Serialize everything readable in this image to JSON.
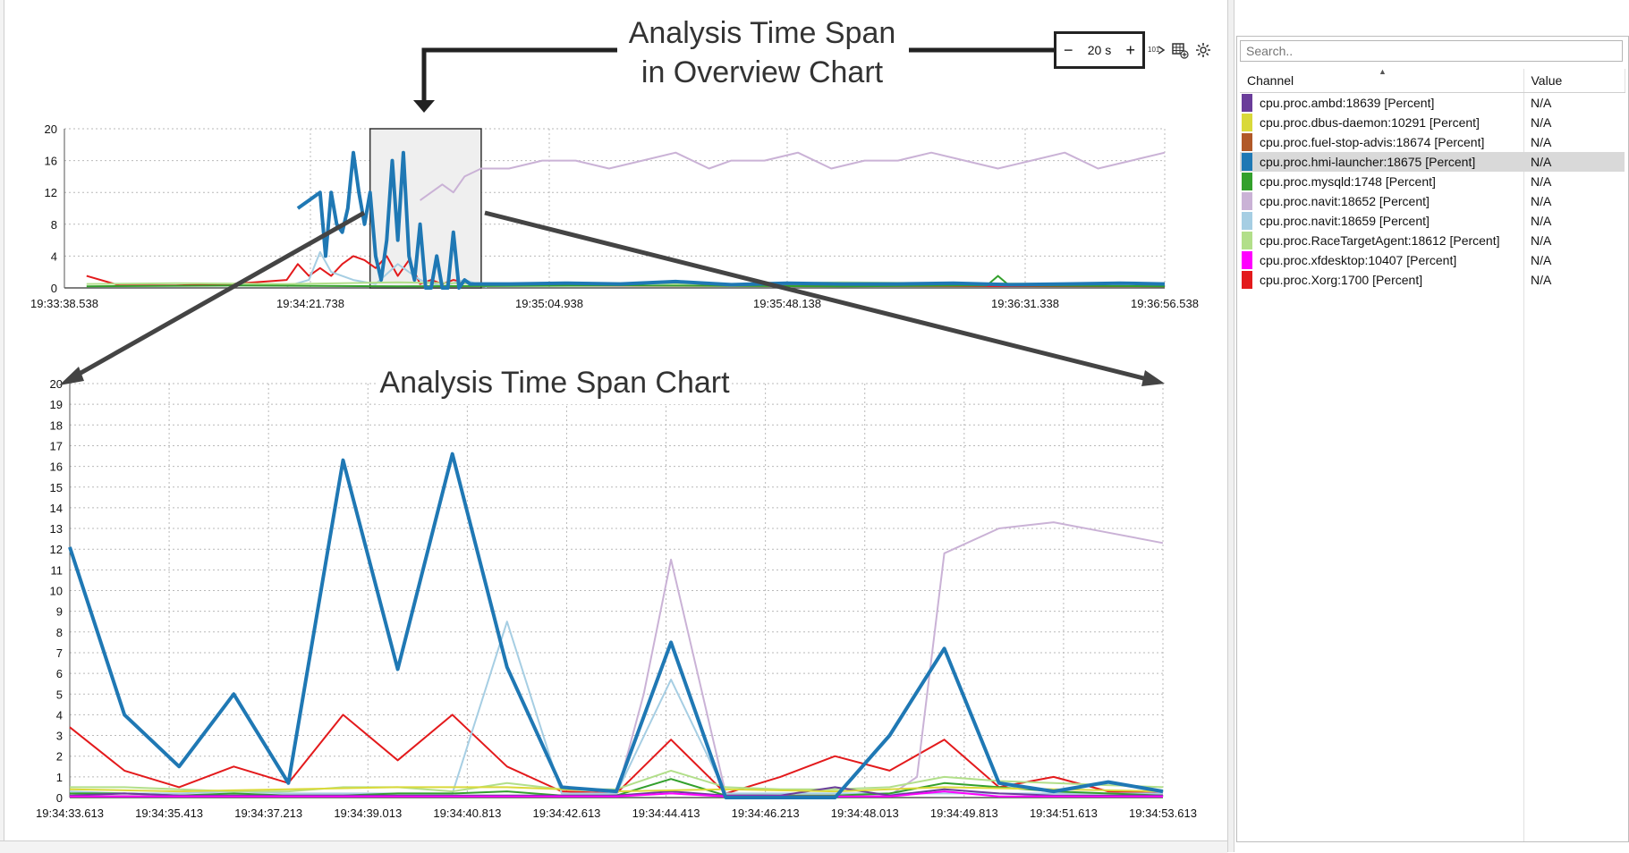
{
  "zoom": {
    "minus": "−",
    "value": "20 s",
    "plus": "+"
  },
  "toolbar_icons": [
    "export-icon",
    "table-add-icon",
    "settings-icon"
  ],
  "search": {
    "placeholder": "Search.."
  },
  "table": {
    "headers": [
      "Channel",
      "Value"
    ],
    "rows": [
      {
        "channel": "cpu.proc.ambd:18639 [Percent]",
        "value": "N/A",
        "color": "#6a3d9a"
      },
      {
        "channel": "cpu.proc.dbus-daemon:10291 [Percent]",
        "value": "N/A",
        "color": "#d9d93a"
      },
      {
        "channel": "cpu.proc.fuel-stop-advis:18674 [Percent]",
        "value": "N/A",
        "color": "#b15928"
      },
      {
        "channel": "cpu.proc.hmi-launcher:18675 [Percent]",
        "value": "N/A",
        "color": "#1f78b4",
        "selected": true
      },
      {
        "channel": "cpu.proc.mysqld:1748 [Percent]",
        "value": "N/A",
        "color": "#33a02c"
      },
      {
        "channel": "cpu.proc.navit:18652 [Percent]",
        "value": "N/A",
        "color": "#cab2d6"
      },
      {
        "channel": "cpu.proc.navit:18659 [Percent]",
        "value": "N/A",
        "color": "#a6cee3"
      },
      {
        "channel": "cpu.proc.RaceTargetAgent:18612 [Percent]",
        "value": "N/A",
        "color": "#b2df8a"
      },
      {
        "channel": "cpu.proc.xfdesktop:10407 [Percent]",
        "value": "N/A",
        "color": "#ff00ff"
      },
      {
        "channel": "cpu.proc.Xorg:1700 [Percent]",
        "value": "N/A",
        "color": "#e31a1c"
      }
    ]
  },
  "callouts": {
    "overview_line1": "Analysis Time Span",
    "overview_line2": "in Overview Chart",
    "detail": "Analysis Time Span Chart"
  },
  "chart_data": [
    {
      "type": "line",
      "title": "",
      "ylim": [
        0,
        20
      ],
      "yticks": [
        0,
        4,
        8,
        12,
        16,
        20
      ],
      "xtick_labels": [
        "19:33:38.538",
        "19:34:21.738",
        "19:35:04.938",
        "19:35:48.138",
        "19:36:31.338",
        "19:36:56.538"
      ],
      "x_range": [
        0,
        198
      ],
      "selection_window": [
        55,
        75
      ],
      "series": [
        {
          "name": "cpu.proc.navit:18652 [Percent]",
          "color": "#cab2d6",
          "width": 2,
          "x": [
            64,
            66,
            68,
            70,
            72,
            75,
            80,
            86,
            92,
            98,
            104,
            110,
            116,
            120,
            126,
            132,
            138,
            144,
            150,
            156,
            162,
            168,
            174,
            180,
            186,
            192,
            198
          ],
          "y": [
            11,
            12,
            13,
            12,
            14,
            15,
            15,
            16,
            16,
            15,
            16,
            17,
            15,
            16,
            16,
            17,
            15,
            16,
            16,
            17,
            16,
            15,
            16,
            17,
            15,
            16,
            17
          ]
        },
        {
          "name": "cpu.proc.hmi-launcher:18675 [Percent]",
          "color": "#1f78b4",
          "width": 4,
          "x": [
            42,
            46,
            47,
            48,
            49,
            50,
            51,
            52,
            53,
            54,
            55,
            56,
            57,
            58,
            59,
            60,
            61,
            62,
            63,
            64,
            65,
            66,
            67,
            68,
            69,
            70,
            71,
            72,
            73,
            74,
            75,
            80,
            90,
            100,
            110,
            120,
            130,
            140,
            150,
            160,
            170,
            180,
            190,
            198
          ],
          "y": [
            10,
            12,
            4,
            12,
            8,
            7,
            10,
            17,
            12,
            8,
            12,
            4,
            1,
            6,
            16,
            6,
            17,
            4,
            1,
            8,
            0,
            0,
            4,
            0,
            0,
            7,
            0,
            1,
            0.5,
            0.5,
            0.5,
            0.5,
            0.6,
            0.5,
            0.8,
            0.4,
            0.6,
            0.5,
            0.5,
            0.6,
            0.4,
            0.5,
            0.6,
            0.5
          ]
        },
        {
          "name": "cpu.proc.Xorg:1700 [Percent]",
          "color": "#e31a1c",
          "width": 2,
          "x": [
            4,
            10,
            20,
            30,
            40,
            42,
            44,
            46,
            48,
            50,
            52,
            54,
            56,
            58,
            60,
            62,
            64,
            66,
            68,
            70,
            75,
            198
          ],
          "y": [
            1.5,
            0.3,
            0.3,
            0.5,
            1,
            3,
            1.5,
            2.5,
            1.5,
            3,
            4,
            3.5,
            2.5,
            4,
            1.5,
            3.5,
            0.5,
            1,
            0.5,
            1,
            0.3,
            0.2
          ]
        },
        {
          "name": "cpu.proc.navit:18659 [Percent]",
          "color": "#a6cee3",
          "width": 2,
          "x": [
            40,
            44,
            46,
            48,
            52,
            56,
            60,
            64,
            68,
            72,
            76
          ],
          "y": [
            0.2,
            1,
            4.5,
            2,
            1,
            0.5,
            3,
            1,
            0.2,
            1,
            0.1
          ]
        },
        {
          "name": "cpu.proc.RaceTargetAgent:18612 [Percent]",
          "color": "#b2df8a",
          "width": 2,
          "x": [
            4,
            20,
            40,
            60,
            80,
            100,
            120,
            140,
            160,
            180,
            198
          ],
          "y": [
            0.5,
            0.6,
            0.5,
            0.7,
            0.5,
            0.6,
            0.5,
            0.7,
            0.6,
            0.5,
            0.6
          ]
        },
        {
          "name": "cpu.proc.mysqld:1748 [Percent]",
          "color": "#33a02c",
          "width": 2,
          "x": [
            4,
            30,
            60,
            100,
            140,
            166,
            168,
            170,
            198
          ],
          "y": [
            0.2,
            0.3,
            0.2,
            0.3,
            0.2,
            0.3,
            1.5,
            0.3,
            0.2
          ]
        }
      ]
    },
    {
      "type": "line",
      "title": "",
      "ylim": [
        0,
        20
      ],
      "yticks": [
        0,
        1,
        2,
        3,
        4,
        5,
        6,
        7,
        8,
        9,
        10,
        11,
        12,
        13,
        14,
        15,
        16,
        17,
        18,
        19,
        20
      ],
      "xtick_labels": [
        "19:34:33.613",
        "19:34:35.413",
        "19:34:37.213",
        "19:34:39.013",
        "19:34:40.813",
        "19:34:42.613",
        "19:34:44.413",
        "19:34:46.213",
        "19:34:48.013",
        "19:34:49.813",
        "19:34:51.613",
        "19:34:53.613"
      ],
      "x_range": [
        0,
        20
      ],
      "series": [
        {
          "name": "cpu.proc.hmi-launcher:18675 [Percent]",
          "color": "#1f78b4",
          "width": 4,
          "x": [
            0,
            1,
            2,
            3,
            4,
            5,
            6,
            7,
            8,
            9,
            10,
            11,
            12,
            13,
            14,
            15,
            16,
            17,
            18,
            19,
            20
          ],
          "y": [
            12.1,
            4,
            1.5,
            5,
            0.7,
            16.3,
            6.2,
            16.6,
            6.3,
            0.5,
            0.3,
            7.5,
            0,
            0,
            0,
            3,
            7.2,
            0.7,
            0.3,
            0.75,
            0.3
          ]
        },
        {
          "name": "cpu.proc.Xorg:1700 [Percent]",
          "color": "#e31a1c",
          "width": 2,
          "x": [
            0,
            1,
            2,
            3,
            4,
            5,
            6,
            7,
            8,
            9,
            10,
            11,
            12,
            13,
            14,
            15,
            16,
            17,
            18,
            19,
            20
          ],
          "y": [
            3.4,
            1.3,
            0.5,
            1.5,
            0.7,
            4,
            1.8,
            4,
            1.5,
            0.3,
            0.2,
            2.8,
            0.2,
            1,
            2,
            1.3,
            2.8,
            0.5,
            1,
            0.3,
            0.2
          ]
        },
        {
          "name": "cpu.proc.navit:18652 [Percent]",
          "color": "#cab2d6",
          "width": 2,
          "x": [
            0,
            1,
            2,
            3,
            4,
            5,
            6,
            7,
            8,
            9,
            10,
            10.5,
            11,
            12,
            13,
            14,
            15,
            15.5,
            16,
            17,
            18,
            19,
            20
          ],
          "y": [
            0.1,
            0.1,
            0.1,
            0.1,
            0.1,
            0.1,
            0.1,
            0.1,
            0.1,
            0.1,
            0.1,
            5,
            11.5,
            0.2,
            0.1,
            0.1,
            0.1,
            1,
            11.8,
            13,
            13.3,
            12.8,
            12.3
          ]
        },
        {
          "name": "cpu.proc.navit:18659 [Percent]",
          "color": "#a6cee3",
          "width": 2,
          "x": [
            0,
            1,
            2,
            3,
            4,
            5,
            6,
            7,
            8,
            9,
            10,
            11,
            12,
            13,
            14,
            15,
            16,
            17,
            18,
            19,
            20
          ],
          "y": [
            0.3,
            0.2,
            0.2,
            0.3,
            0.2,
            0.2,
            0.2,
            0.2,
            8.5,
            0.2,
            0.2,
            5.7,
            0.2,
            0.2,
            0.2,
            0.2,
            0.2,
            0.2,
            0.2,
            0.2,
            0.2
          ]
        },
        {
          "name": "cpu.proc.RaceTargetAgent:18612 [Percent]",
          "color": "#b2df8a",
          "width": 2,
          "x": [
            0,
            1,
            2,
            3,
            4,
            5,
            6,
            7,
            8,
            9,
            10,
            11,
            12,
            13,
            14,
            15,
            16,
            17,
            18,
            19,
            20
          ],
          "y": [
            0.5,
            0.5,
            0.4,
            0.3,
            0.3,
            0.5,
            0.5,
            0.3,
            0.7,
            0.4,
            0.4,
            1.3,
            0.5,
            0.4,
            0.4,
            0.5,
            1,
            0.8,
            0.7,
            0.6,
            0.5
          ]
        },
        {
          "name": "cpu.proc.mysqld:1748 [Percent]",
          "color": "#33a02c",
          "width": 2,
          "x": [
            0,
            1,
            2,
            3,
            4,
            5,
            6,
            7,
            8,
            9,
            10,
            11,
            12,
            13,
            14,
            15,
            16,
            17,
            18,
            19,
            20
          ],
          "y": [
            0.2,
            0.2,
            0.1,
            0.2,
            0.1,
            0.1,
            0.2,
            0.2,
            0.3,
            0.1,
            0.1,
            0.9,
            0.1,
            0.1,
            0.1,
            0.2,
            0.7,
            0.5,
            0.3,
            0.2,
            0.1
          ]
        },
        {
          "name": "cpu.proc.ambd:18639 [Percent]",
          "color": "#6a3d9a",
          "width": 2,
          "x": [
            0,
            1,
            2,
            3,
            4,
            5,
            6,
            7,
            8,
            9,
            10,
            11,
            12,
            13,
            14,
            15,
            16,
            17,
            18,
            19,
            20
          ],
          "y": [
            0.1,
            0.2,
            0.1,
            0.1,
            0.1,
            0.1,
            0.1,
            0.1,
            0.1,
            0.1,
            0.1,
            0.3,
            0.1,
            0.1,
            0.5,
            0.1,
            0.4,
            0.2,
            0.1,
            0.1,
            0.1
          ]
        },
        {
          "name": "cpu.proc.xfdesktop:10407 [Percent]",
          "color": "#ff00ff",
          "width": 2,
          "x": [
            0,
            1,
            2,
            3,
            4,
            5,
            6,
            7,
            8,
            9,
            10,
            11,
            12,
            13,
            14,
            15,
            16,
            17,
            18,
            19,
            20
          ],
          "y": [
            0.05,
            0.05,
            0.05,
            0.05,
            0.05,
            0.05,
            0.05,
            0.05,
            0.05,
            0.05,
            0.05,
            0.2,
            0.05,
            0.05,
            0.05,
            0.05,
            0.3,
            0.05,
            0.05,
            0.05,
            0.05
          ]
        },
        {
          "name": "cpu.proc.dbus-daemon:10291 [Percent]",
          "color": "#d9d93a",
          "width": 2,
          "x": [
            0,
            2,
            4,
            6,
            8,
            10,
            12,
            14,
            16,
            18,
            20
          ],
          "y": [
            0.4,
            0.3,
            0.4,
            0.5,
            0.5,
            0.3,
            0.4,
            0.3,
            0.5,
            0.4,
            0.3
          ]
        }
      ]
    }
  ]
}
